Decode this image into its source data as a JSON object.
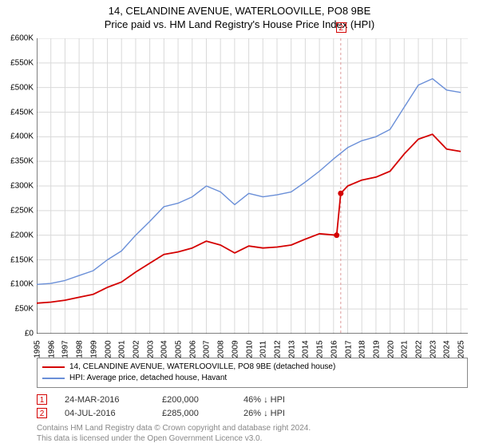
{
  "title": {
    "line1": "14, CELANDINE AVENUE, WATERLOOVILLE, PO8 9BE",
    "line2": "Price paid vs. HM Land Registry's House Price Index (HPI)"
  },
  "chart": {
    "type": "line",
    "background_color": "#ffffff",
    "grid_color": "#d9d9d9",
    "axis_color": "#000000",
    "x": {
      "min": 1995,
      "max": 2025.5,
      "ticks": [
        1995,
        1996,
        1997,
        1998,
        1999,
        2000,
        2001,
        2002,
        2003,
        2004,
        2005,
        2006,
        2007,
        2008,
        2009,
        2010,
        2011,
        2012,
        2013,
        2014,
        2015,
        2016,
        2017,
        2018,
        2019,
        2020,
        2021,
        2022,
        2023,
        2024,
        2025
      ]
    },
    "y": {
      "min": 0,
      "max": 600000,
      "ticks": [
        0,
        50000,
        100000,
        150000,
        200000,
        250000,
        300000,
        350000,
        400000,
        450000,
        500000,
        550000,
        600000
      ],
      "tick_labels": [
        "£0",
        "£50K",
        "£100K",
        "£150K",
        "£200K",
        "£250K",
        "£300K",
        "£350K",
        "£400K",
        "£450K",
        "£500K",
        "£550K",
        "£600K"
      ]
    },
    "series": [
      {
        "id": "hpi",
        "label": "HPI: Average price, detached house, Havant",
        "color": "#6a8fd8",
        "width": 1.4,
        "points": [
          [
            1995,
            100000
          ],
          [
            1996,
            102000
          ],
          [
            1997,
            108000
          ],
          [
            1998,
            118000
          ],
          [
            1999,
            128000
          ],
          [
            2000,
            150000
          ],
          [
            2001,
            168000
          ],
          [
            2002,
            200000
          ],
          [
            2003,
            228000
          ],
          [
            2004,
            258000
          ],
          [
            2005,
            265000
          ],
          [
            2006,
            278000
          ],
          [
            2007,
            300000
          ],
          [
            2008,
            288000
          ],
          [
            2009,
            262000
          ],
          [
            2010,
            285000
          ],
          [
            2011,
            278000
          ],
          [
            2012,
            282000
          ],
          [
            2013,
            288000
          ],
          [
            2014,
            308000
          ],
          [
            2015,
            330000
          ],
          [
            2016,
            355000
          ],
          [
            2017,
            378000
          ],
          [
            2018,
            392000
          ],
          [
            2019,
            400000
          ],
          [
            2020,
            415000
          ],
          [
            2021,
            460000
          ],
          [
            2022,
            505000
          ],
          [
            2023,
            518000
          ],
          [
            2024,
            495000
          ],
          [
            2025,
            490000
          ]
        ]
      },
      {
        "id": "property",
        "label": "14, CELANDINE AVENUE, WATERLOOVILLE, PO8 9BE (detached house)",
        "color": "#d40000",
        "width": 1.8,
        "points": [
          [
            1995,
            62000
          ],
          [
            1996,
            64000
          ],
          [
            1997,
            68000
          ],
          [
            1998,
            74000
          ],
          [
            1999,
            80000
          ],
          [
            2000,
            94000
          ],
          [
            2001,
            105000
          ],
          [
            2002,
            125000
          ],
          [
            2003,
            143000
          ],
          [
            2004,
            161000
          ],
          [
            2005,
            166000
          ],
          [
            2006,
            174000
          ],
          [
            2007,
            188000
          ],
          [
            2008,
            180000
          ],
          [
            2009,
            164000
          ],
          [
            2010,
            178000
          ],
          [
            2011,
            174000
          ],
          [
            2012,
            176000
          ],
          [
            2013,
            180000
          ],
          [
            2014,
            192000
          ],
          [
            2015,
            203000
          ],
          [
            2016.22,
            200000
          ],
          [
            2016.51,
            285000
          ],
          [
            2017,
            300000
          ],
          [
            2018,
            312000
          ],
          [
            2019,
            318000
          ],
          [
            2020,
            330000
          ],
          [
            2021,
            365000
          ],
          [
            2022,
            395000
          ],
          [
            2023,
            405000
          ],
          [
            2024,
            375000
          ],
          [
            2025,
            370000
          ]
        ]
      }
    ],
    "markers": [
      {
        "n": "1",
        "x": 2016.22,
        "y": 200000,
        "color": "#d40000",
        "guide": false
      },
      {
        "n": "2",
        "x": 2016.51,
        "y": 285000,
        "color": "#d40000",
        "guide": true,
        "guide_color": "#d99"
      }
    ]
  },
  "legend": {
    "items": [
      {
        "color": "#d40000",
        "label": "14, CELANDINE AVENUE, WATERLOOVILLE, PO8 9BE (detached house)"
      },
      {
        "color": "#6a8fd8",
        "label": "HPI: Average price, detached house, Havant"
      }
    ]
  },
  "transactions": [
    {
      "n": "1",
      "date": "24-MAR-2016",
      "price": "£200,000",
      "delta": "46% ↓ HPI",
      "color": "#d40000"
    },
    {
      "n": "2",
      "date": "04-JUL-2016",
      "price": "£285,000",
      "delta": "26% ↓ HPI",
      "color": "#d40000"
    }
  ],
  "footer": {
    "line1": "Contains HM Land Registry data © Crown copyright and database right 2024.",
    "line2": "This data is licensed under the Open Government Licence v3.0."
  },
  "fonts": {
    "tick": 10,
    "title": 13,
    "legend": 10,
    "trans": 11,
    "footer": 10
  }
}
